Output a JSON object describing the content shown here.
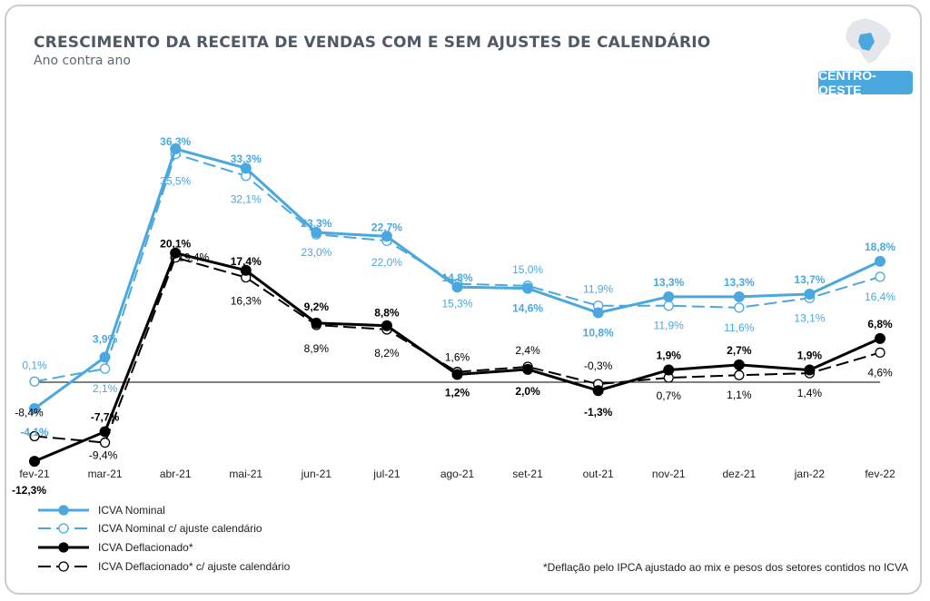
{
  "header": {
    "title": "CRESCIMENTO DA RECEITA DE VENDAS COM E SEM AJUSTES DE CALENDÁRIO",
    "subtitle": "Ano contra ano",
    "region": "CENTRO-OESTE"
  },
  "footnote": "*Deflação pelo IPCA ajustado ao mix e pesos dos setores contidos no ICVA",
  "colors": {
    "blue": "#4aa8df",
    "black": "#000000",
    "grid": "#000000"
  },
  "chart_data": {
    "type": "line",
    "title": "CRESCIMENTO DA RECEITA DE VENDAS COM E SEM AJUSTES DE CALENDÁRIO",
    "subtitle": "Ano contra ano",
    "categories": [
      "fev-21",
      "mar-21",
      "abr-21",
      "mai-21",
      "jun-21",
      "jul-21",
      "ago-21",
      "set-21",
      "out-21",
      "nov-21",
      "dez-21",
      "jan-22",
      "fev-22"
    ],
    "ylim": [
      -13,
      37
    ],
    "zero_line": true,
    "legend_position": "bottom-left",
    "series": [
      {
        "name": "ICVA Nominal",
        "style": "solid-filled",
        "color": "#4aa8df",
        "values": [
          -4.1,
          3.9,
          36.3,
          33.3,
          23.3,
          22.7,
          14.8,
          14.6,
          10.8,
          13.3,
          13.3,
          13.7,
          18.8
        ],
        "labels": [
          "-4,1%",
          "3,9%",
          "36,3%",
          "33,3%",
          "23,3%",
          "22,7%",
          "14,8%",
          "14,6%",
          "10,8%",
          "13,3%",
          "13,3%",
          "13,7%",
          "18,8%"
        ]
      },
      {
        "name": "ICVA Nominal c/ ajuste calendário",
        "style": "dashed-open",
        "color": "#4aa8df",
        "values": [
          0.1,
          2.1,
          35.5,
          32.1,
          23.0,
          22.0,
          15.3,
          15.0,
          11.9,
          11.9,
          11.6,
          13.1,
          16.4
        ],
        "labels": [
          "0,1%",
          "2,1%",
          "35,5%",
          "32,1%",
          "23,0%",
          "22,0%",
          "15,3%",
          "15,0%",
          "11,9%",
          "11,9%",
          "11,6%",
          "13,1%",
          "16,4%"
        ]
      },
      {
        "name": "ICVA Deflacionado*",
        "style": "solid-filled",
        "color": "#000000",
        "values": [
          -12.3,
          -7.7,
          20.1,
          17.4,
          9.2,
          8.8,
          1.2,
          2.0,
          -1.3,
          1.9,
          2.7,
          1.9,
          6.8
        ],
        "labels": [
          "-12,3%",
          "-7,7%",
          "20,1%",
          "17,4%",
          "9,2%",
          "8,8%",
          "1,2%",
          "2,0%",
          "-1,3%",
          "1,9%",
          "2,7%",
          "1,9%",
          "6,8%"
        ]
      },
      {
        "name": "ICVA Deflacionado* c/ ajuste calendário",
        "style": "dashed-open",
        "color": "#000000",
        "values": [
          -8.4,
          -9.4,
          19.4,
          16.3,
          8.9,
          8.2,
          1.6,
          2.4,
          -0.3,
          0.7,
          1.1,
          1.4,
          4.6
        ],
        "labels": [
          "-8,4%",
          "-9,4%",
          "19,4%",
          "16,3%",
          "8,9%",
          "8,2%",
          "1,6%",
          "2,4%",
          "-0,3%",
          "0,7%",
          "1,1%",
          "1,4%",
          "4,6%"
        ]
      }
    ]
  }
}
